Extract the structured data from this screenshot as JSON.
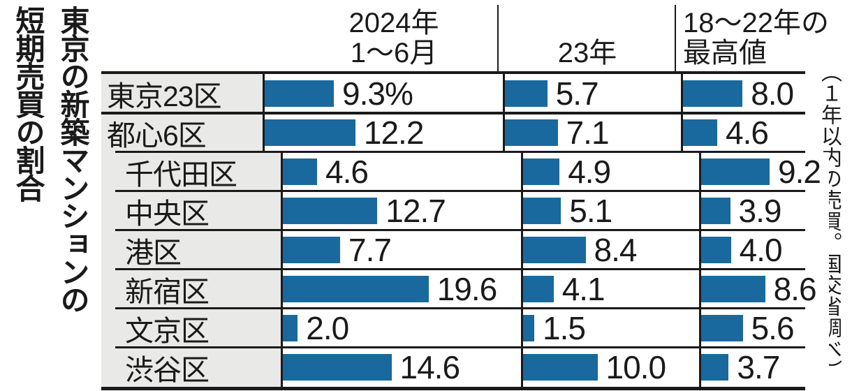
{
  "title": {
    "lines": [
      "東京の新築マンションの",
      "短期売買の割合"
    ]
  },
  "side_note": "（１年以内の売買。国交省調べ）",
  "header": {
    "col1": [
      "2024年",
      "1〜6月"
    ],
    "col2": "23年",
    "col3": [
      "18〜22年の",
      "最高値"
    ]
  },
  "colors": {
    "bar-color": "#19699e",
    "label-bg": "#e9e9e8",
    "line": "#1a1a1a",
    "text": "#1a1a1a"
  },
  "chart_data": {
    "type": "bar",
    "orientation": "horizontal",
    "title": "東京の新築マンションの短期売買の割合",
    "unit": "%",
    "note": "（１年以内の売買。国交省調べ）",
    "value_axis_visible": false,
    "xlim": [
      0,
      20
    ],
    "categories": [
      "東京23区",
      "都心6区",
      "千代田区",
      "中央区",
      "港区",
      "新宿区",
      "文京区",
      "渋谷区"
    ],
    "series": [
      {
        "name": "2024年1〜6月",
        "values": [
          9.3,
          12.2,
          4.6,
          12.7,
          7.7,
          19.6,
          2.0,
          14.6
        ],
        "display": [
          "9.3%",
          "12.2",
          "4.6",
          "12.7",
          "7.7",
          "19.6",
          "2.0",
          "14.6"
        ]
      },
      {
        "name": "23年",
        "values": [
          5.7,
          7.1,
          4.9,
          5.1,
          8.4,
          4.1,
          1.5,
          10.0
        ],
        "display": [
          "5.7",
          "7.1",
          "4.9",
          "5.1",
          "8.4",
          "4.1",
          "1.5",
          "10.0"
        ]
      },
      {
        "name": "18〜22年の最高値",
        "values": [
          8.0,
          4.6,
          9.2,
          3.9,
          4.0,
          8.6,
          5.6,
          3.7
        ],
        "display": [
          "8.0",
          "4.6",
          "9.2",
          "3.9",
          "4.0",
          "8.6",
          "5.6",
          "3.7"
        ]
      }
    ]
  }
}
